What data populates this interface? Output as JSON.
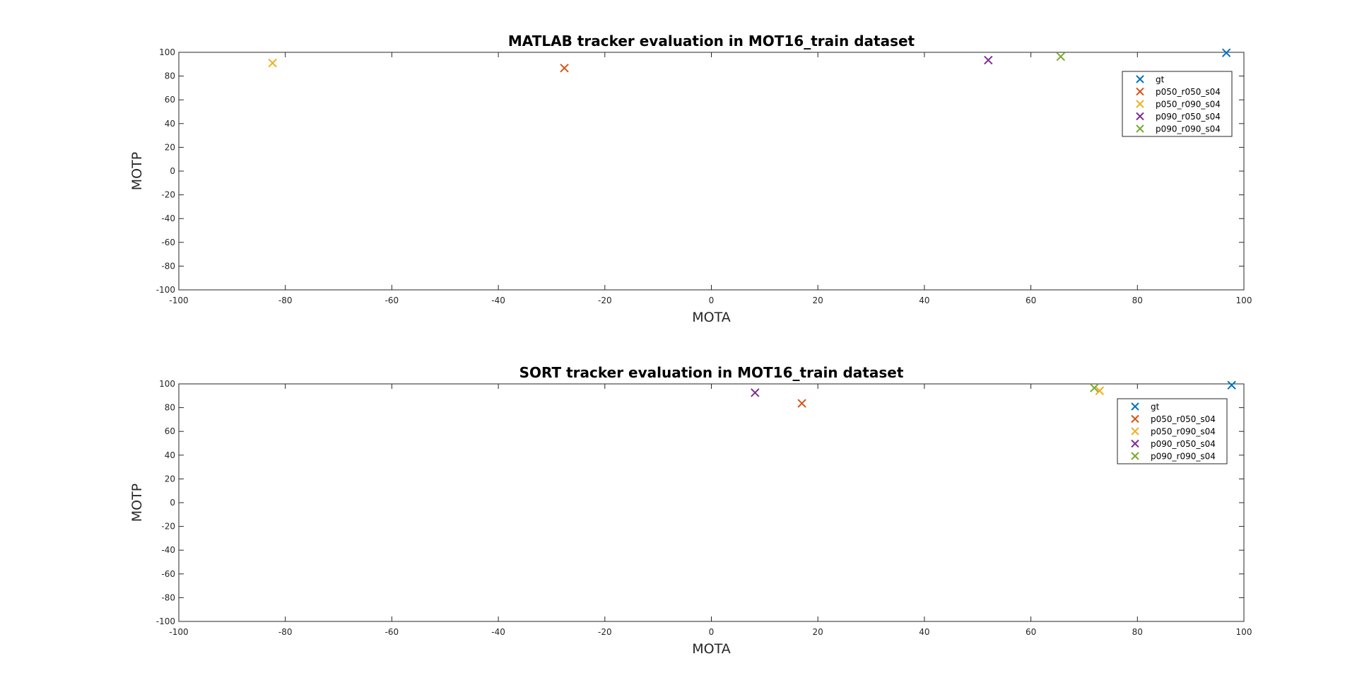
{
  "series_styles": [
    {
      "name": "gt",
      "color": "#0072BD"
    },
    {
      "name": "p050_r050_s04",
      "color": "#D95319"
    },
    {
      "name": "p050_r090_s04",
      "color": "#EDB120"
    },
    {
      "name": "p090_r050_s04",
      "color": "#7E2F8E"
    },
    {
      "name": "p090_r090_s04",
      "color": "#77AC30"
    }
  ],
  "chart_data": [
    {
      "type": "scatter",
      "title": "MATLAB tracker evaluation in MOT16_train dataset",
      "xlabel": "MOTA",
      "ylabel": "MOTP",
      "xlim": [
        -100,
        100
      ],
      "ylim": [
        -100,
        100
      ],
      "xticks": [
        -100,
        -80,
        -60,
        -40,
        -20,
        0,
        20,
        40,
        60,
        80,
        100
      ],
      "yticks": [
        -100,
        -80,
        -60,
        -40,
        -20,
        0,
        20,
        40,
        60,
        80,
        100
      ],
      "marker": "x",
      "grid": false,
      "legend_position": "top-right",
      "series": [
        {
          "name": "gt",
          "x": 96.7,
          "y": 99.6
        },
        {
          "name": "p050_r050_s04",
          "x": -27.6,
          "y": 86.7
        },
        {
          "name": "p050_r090_s04",
          "x": -82.4,
          "y": 91.0
        },
        {
          "name": "p090_r050_s04",
          "x": 52.0,
          "y": 93.4
        },
        {
          "name": "p090_r090_s04",
          "x": 65.6,
          "y": 96.4
        }
      ]
    },
    {
      "type": "scatter",
      "title": "SORT tracker evaluation in MOT16_train dataset",
      "xlabel": "MOTA",
      "ylabel": "MOTP",
      "xlim": [
        -100,
        100
      ],
      "ylim": [
        -100,
        100
      ],
      "xticks": [
        -100,
        -80,
        -60,
        -40,
        -20,
        0,
        20,
        40,
        60,
        80,
        100
      ],
      "yticks": [
        -100,
        -80,
        -60,
        -40,
        -20,
        0,
        20,
        40,
        60,
        80,
        100
      ],
      "marker": "x",
      "grid": false,
      "legend_position": "top-right",
      "series": [
        {
          "name": "gt",
          "x": 97.7,
          "y": 98.9
        },
        {
          "name": "p050_r050_s04",
          "x": 17.0,
          "y": 83.6
        },
        {
          "name": "p050_r090_s04",
          "x": 72.9,
          "y": 94.2
        },
        {
          "name": "p090_r050_s04",
          "x": 8.2,
          "y": 92.6
        },
        {
          "name": "p090_r090_s04",
          "x": 71.9,
          "y": 96.6
        }
      ]
    }
  ]
}
